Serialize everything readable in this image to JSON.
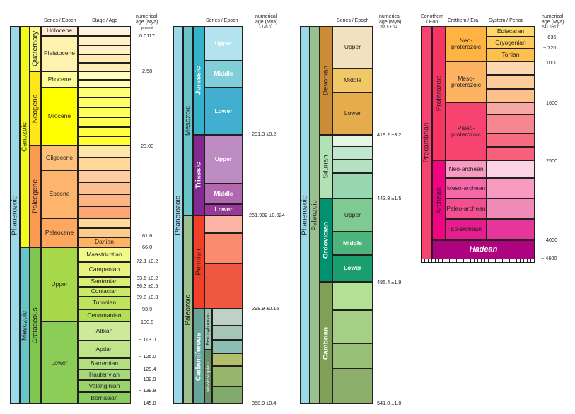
{
  "headers": {
    "p1_series": "Series / Epoch",
    "p1_stage": "Stage / Age",
    "age_l1": "numerical",
    "age_l2": "age (Mya)",
    "p1_age_sub": "present",
    "p2_series": "Series / Epoch",
    "p2_age_sub": "~ 145.0",
    "p3_series": "Series / Epoch",
    "p3_age_sub": "358.9 ± 0.4",
    "p4_eon_l1": "Eonothem",
    "p4_eon_l2": "/ Eon",
    "p4_era": "Erathem / Era",
    "p4_system": "System / Period",
    "p4_age_sub": "541.0 ±1.0"
  },
  "units": {
    "phanerozoic": "Phanerozoic",
    "cenozoic": "Cenozoic",
    "mesozoic": "Mesozoic",
    "paleozoic": "Paleozoic",
    "quaternary": "Quaternary",
    "neogene": "Neogene",
    "paleogene": "Paleogene",
    "cretaceous": "Cretaceous",
    "jurassic": "Jurassic",
    "triassic": "Triassic",
    "permian": "Permian",
    "carboniferous": "Carboniferous",
    "pennsylvanian": "Pennsylvanian",
    "mississippian": "Mississippian",
    "devonian": "Devonian",
    "silurian": "Silurian",
    "ordovician": "Ordovician",
    "cambrian": "Cambrian",
    "precambrian": "Precambrian",
    "proterozoic": "Proterozoic",
    "archean": "Archean",
    "hadean": "Hadean"
  },
  "epochs": {
    "holocene": "Holocene",
    "pleistocene": "Pleistocene",
    "pliocene": "Pliocene",
    "miocene": "Miocene",
    "oligocene": "Oligocene",
    "eocene": "Eocene",
    "paleocene": "Paleocene",
    "upper": "Upper",
    "middle": "Middle",
    "lower": "Lower"
  },
  "stages": {
    "danian": "Danian",
    "maastrichtian": "Maastrichtian",
    "campanian": "Campanian",
    "santonian": "Santonian",
    "coniacian": "Coniacian",
    "turonian": "Turonian",
    "cenomanian": "Cenomanian",
    "albian": "Albian",
    "aptian": "Aptian",
    "barremian": "Barremian",
    "hauterivian": "Hauterivian",
    "valanginian": "Valanginian",
    "berriasian": "Berriasian"
  },
  "eras": {
    "neoproterozoic": "Neo-proterozoic",
    "mesoproterozoic": "Meso-proterozoic",
    "paleoproterozoic": "Paleo-proterozoic",
    "neoarchean": "Neo-archean",
    "mesoarchean": "Meso-archean",
    "paleoarchean": "Paleo-archean",
    "eoarchean": "Eo-archean"
  },
  "periods": {
    "ediacaran": "Ediacaran",
    "cryogenian": "Cryogenian",
    "tonian": "Tonian"
  },
  "ages": {
    "p1": [
      "0.0117",
      "2.58",
      "23.03",
      "61.6",
      "66.0",
      "72.1 ±0.2",
      "83.6 ±0.2",
      "86.3 ±0.5",
      "89.8 ±0.3",
      "93.9",
      "100.5",
      "~ 113.0",
      "~ 125.0",
      "~ 129.4",
      "~ 132.9",
      "~ 139.8",
      "~ 145.0"
    ],
    "p2": [
      "201.3 ±0.2",
      "251.902 ±0.024",
      "298.9 ±0.15",
      "358.9 ±0.4"
    ],
    "p3": [
      "419.2 ±3.2",
      "443.8 ±1.5",
      "485.4 ±1.9",
      "541.0 ±1.0"
    ],
    "p4": [
      "~ 635",
      "~ 720",
      "1000",
      "1600",
      "2500",
      "4000",
      "~ 4600"
    ]
  },
  "colors": {
    "phanerozoic": "#9ad9ea",
    "cenozoic": "#f2f91d",
    "mesozoic": "#67c5ca",
    "paleozoic": "#99c08d",
    "quaternary": "#f9f97f",
    "neogene": "#ffe619",
    "paleogene": "#fd9a52",
    "cretaceous": "#7fc64e",
    "jurassic": "#34b2c9",
    "triassic": "#812b92",
    "permian": "#f04028",
    "carboniferous": "#67a599",
    "devonian": "#cb8c37",
    "silurian": "#b3e1b6",
    "ordovician": "#009270",
    "cambrian": "#7fa056",
    "precambrian": "#f74370",
    "proterozoic": "#f73563",
    "archean": "#f0047f",
    "hadean": "#ae027e"
  }
}
